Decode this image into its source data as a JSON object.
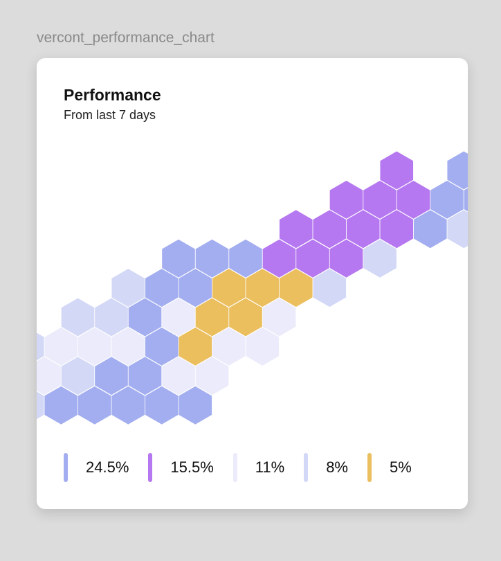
{
  "frame": {
    "label": "vercont_performance_chart"
  },
  "card": {
    "title": "Performance",
    "subtitle": "From last 7 days"
  },
  "colors": {
    "A": "#a3aef0",
    "P": "#b678f0",
    "W": "#ebebfb",
    "L": "#d3d8f6",
    "Y": "#ebbe5e"
  },
  "chart_data": {
    "type": "heatmap",
    "title": "Performance",
    "subtitle": "From last 7 days",
    "legend": [
      {
        "key": "A",
        "value": "24.5%"
      },
      {
        "key": "P",
        "value": "15.5%"
      },
      {
        "key": "W",
        "value": "11%"
      },
      {
        "key": "L",
        "value": "8%"
      },
      {
        "key": "Y",
        "value": "5%"
      }
    ],
    "grid": [
      [
        "",
        "",
        "",
        "",
        "",
        "",
        "",
        "",
        "P",
        "",
        "A",
        "A",
        "A",
        ""
      ],
      [
        "",
        "",
        "",
        "",
        "",
        "",
        "",
        "P",
        "P",
        "P",
        "A",
        "A",
        "L",
        ""
      ],
      [
        "",
        "",
        "",
        "",
        "",
        "",
        "P",
        "P",
        "P",
        "P",
        "A",
        "L",
        "",
        ""
      ],
      [
        "",
        "",
        "",
        "A",
        "A",
        "A",
        "P",
        "P",
        "P",
        "L",
        "",
        "",
        "",
        ""
      ],
      [
        "",
        "",
        "L",
        "A",
        "A",
        "Y",
        "Y",
        "Y",
        "L",
        "",
        "",
        "",
        "",
        ""
      ],
      [
        "",
        "L",
        "L",
        "A",
        "W",
        "Y",
        "Y",
        "W",
        "",
        "",
        "",
        "",
        "",
        ""
      ],
      [
        "L",
        "W",
        "W",
        "W",
        "A",
        "Y",
        "W",
        "W",
        "",
        "",
        "",
        "",
        "",
        ""
      ],
      [
        "W",
        "W",
        "L",
        "A",
        "A",
        "W",
        "W",
        "",
        "",
        "",
        "",
        "",
        "",
        ""
      ],
      [
        "W",
        "L",
        "A",
        "A",
        "A",
        "A",
        "A",
        "",
        "",
        "",
        "",
        "",
        "",
        ""
      ]
    ]
  }
}
